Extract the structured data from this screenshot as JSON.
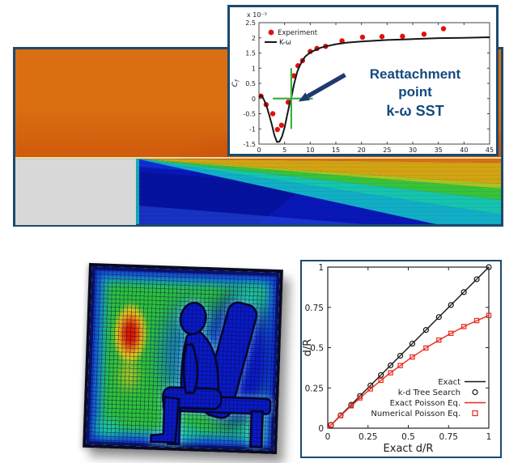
{
  "css_colors": {
    "panel-border": "#1c4a6e",
    "cfd-orange": "#d96e12",
    "cfd-orange-dark": "#c74106",
    "step-gray": "#d8d8d8",
    "interface-line": "#e3e0a8",
    "band-mustard": "#d2a312",
    "band-yellowgreen": "#a8c41c",
    "band-green": "#38c23a",
    "band-cyan": "#16c4ae",
    "band-teal": "#12aec6",
    "blue-base": "#0d2ed0",
    "blue-deep": "#0817b6",
    "blue-darker": "#05129e",
    "mesh-bg-green": "#2ec23a",
    "ring-navy": "#0a1270",
    "ring-blue": "#1536cc",
    "ring-cyan": "#17a0d8",
    "figure-blue": "#0a1ac8",
    "figure-outline": "#050528",
    "hot-red": "#e01800",
    "hot-orange": "#f07818",
    "hot-yellow": "#ecd018",
    "patch-teal": "#1cc8a8",
    "annot-navy": "#15497e",
    "arrow-navy": "#1e3a6e",
    "cross-green": "#3faf3f",
    "exp-red": "#e01010",
    "line-black": "#161616",
    "poisson-red": "#e8291c"
  },
  "chart_data": [
    {
      "type": "line",
      "title": "",
      "ylabel": "C",
      "ylabel_sub": "f",
      "scale_note": "x 10⁻³",
      "xlim": [
        0,
        45
      ],
      "ylim": [
        -1.5,
        2.5
      ],
      "xticks": [
        0,
        5,
        10,
        15,
        20,
        25,
        30,
        35,
        40,
        45
      ],
      "yticks": [
        -1.5,
        -1,
        -0.5,
        0,
        0.5,
        1,
        1.5,
        2,
        2.5
      ],
      "legend_position": "top-left",
      "grid": false,
      "series": [
        {
          "name": "Experiment",
          "type": "scatter",
          "marker": "circle-filled",
          "color": "#e01010",
          "x": [
            0.4,
            1.4,
            2.7,
            3.6,
            4.4,
            5.7,
            6.8,
            7.6,
            8.5,
            10,
            11.3,
            13,
            16.2,
            20.2,
            24,
            28,
            32.2,
            36
          ],
          "y": [
            0.08,
            -0.2,
            -0.5,
            -1.02,
            -0.88,
            -0.12,
            0.75,
            1.08,
            1.25,
            1.55,
            1.65,
            1.72,
            1.9,
            2.02,
            2.04,
            2.05,
            2.12,
            2.3
          ]
        },
        {
          "name": "K-ω",
          "type": "line",
          "color": "#161616",
          "x": [
            0,
            0.3,
            0.6,
            1,
            1.5,
            2,
            2.5,
            3,
            3.5,
            4,
            4.5,
            5,
            5.5,
            6,
            6.3,
            6.8,
            7.5,
            8,
            8.5,
            9,
            10,
            11,
            12,
            13,
            15,
            17,
            20,
            25,
            30,
            35,
            40,
            45
          ],
          "y": [
            0.05,
            0.1,
            0.08,
            -0.05,
            -0.25,
            -0.55,
            -0.85,
            -1.2,
            -1.43,
            -1.42,
            -1.25,
            -0.95,
            -0.55,
            -0.15,
            0.02,
            0.45,
            0.9,
            1.1,
            1.25,
            1.38,
            1.52,
            1.6,
            1.67,
            1.72,
            1.79,
            1.84,
            1.88,
            1.93,
            1.96,
            1.99,
            2.0,
            2.02
          ]
        }
      ],
      "annotation": {
        "label_line1": "Reattachment",
        "label_line2": "point",
        "label_line3": "k-ω SST",
        "cross_x": 6.3,
        "cross_y": 0,
        "cross_x_span": [
          2.7,
          10.5
        ],
        "cross_y_span": [
          -1,
          1
        ],
        "arrow_tail": [
          16.8,
          0.78
        ],
        "arrow_tip": [
          7.7,
          -0.1
        ]
      }
    },
    {
      "type": "line",
      "xlabel": "Exact d/R",
      "ylabel": "d/R",
      "xlim": [
        0,
        1
      ],
      "ylim": [
        0,
        1
      ],
      "xticks": [
        0,
        0.25,
        0.5,
        0.75,
        1
      ],
      "yticks": [
        0,
        0.25,
        0.5,
        0.75,
        1
      ],
      "legend_position": "bottom-right",
      "grid": false,
      "series": [
        {
          "name": "Exact",
          "type": "line",
          "color": "#161616",
          "x": [
            0,
            1
          ],
          "y": [
            0,
            1
          ]
        },
        {
          "name": "k-d Tree Search",
          "type": "scatter",
          "marker": "circle-open",
          "color": "#161616",
          "x": [
            0.02,
            0.08,
            0.145,
            0.2,
            0.265,
            0.33,
            0.39,
            0.45,
            0.525,
            0.61,
            0.69,
            0.765,
            0.845,
            0.925,
            1.0
          ],
          "y": [
            0.02,
            0.08,
            0.145,
            0.2,
            0.265,
            0.33,
            0.39,
            0.45,
            0.525,
            0.61,
            0.69,
            0.765,
            0.845,
            0.925,
            1.0
          ]
        },
        {
          "name": "Exact Poisson Eq.",
          "type": "line",
          "color": "#e8291c",
          "x": [
            0,
            0.125,
            0.25,
            0.375,
            0.5,
            0.625,
            0.75,
            0.875,
            1
          ],
          "y": [
            0,
            0.12,
            0.231,
            0.333,
            0.425,
            0.508,
            0.581,
            0.645,
            0.7
          ]
        },
        {
          "name": "Numerical Poisson Eq.",
          "type": "scatter",
          "marker": "square-open",
          "color": "#e8291c",
          "x": [
            0.02,
            0.08,
            0.145,
            0.2,
            0.265,
            0.33,
            0.39,
            0.45,
            0.525,
            0.61,
            0.69,
            0.765,
            0.845,
            0.925,
            1.0
          ],
          "y": [
            0.02,
            0.078,
            0.139,
            0.188,
            0.244,
            0.297,
            0.344,
            0.389,
            0.442,
            0.498,
            0.547,
            0.589,
            0.631,
            0.668,
            0.7
          ]
        }
      ]
    }
  ]
}
